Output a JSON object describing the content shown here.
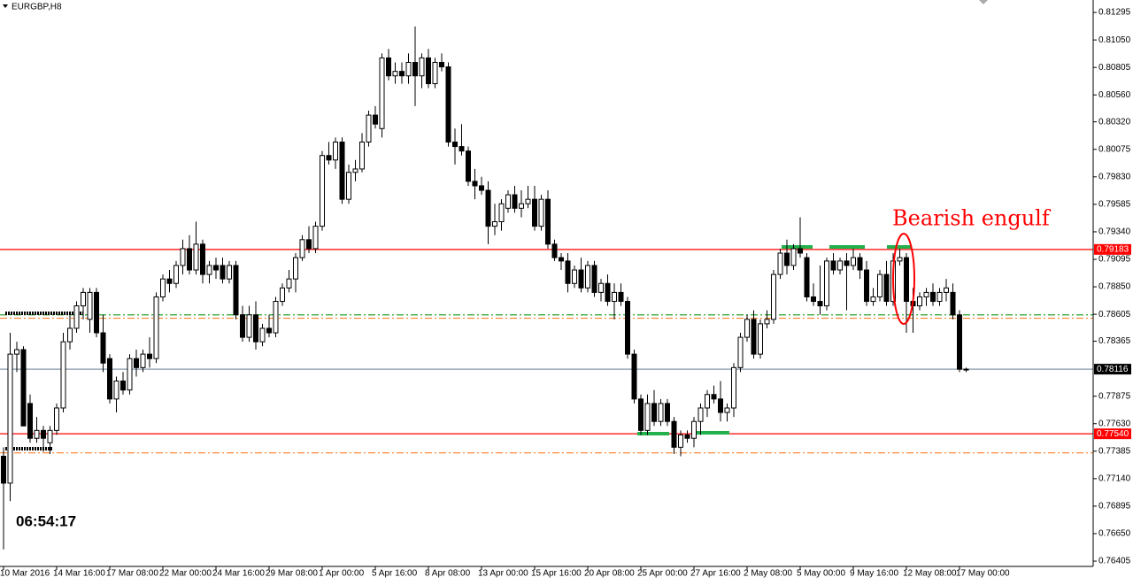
{
  "chart_data": {
    "type": "candlestick",
    "title": "EURGBP,H8",
    "timer": "06:54:17",
    "annotation": "Bearish engulf",
    "ylim": [
      0.76358,
      0.81406
    ],
    "yticks": [
      0.81295,
      {
        "value": 0.8105,
        "label": "0.81050"
      },
      0.80805,
      {
        "value": 0.8056,
        "label": "0.80560"
      },
      {
        "value": 0.8032,
        "label": "0.80320"
      },
      0.80075,
      {
        "value": 0.7983,
        "label": "0.79830"
      },
      0.79585,
      {
        "value": 0.7934,
        "label": "0.79340"
      },
      0.79095,
      {
        "value": 0.7885,
        "label": "0.78850"
      },
      0.78605,
      0.78365,
      0.77875,
      {
        "value": 0.7763,
        "label": "0.77630"
      },
      0.77385,
      {
        "value": 0.7714,
        "label": "0.77140"
      },
      0.76895,
      {
        "value": 0.7665,
        "label": "0.76650"
      },
      0.76405
    ],
    "levels": [
      {
        "value": 0.79183,
        "label": "0.79183",
        "color": "#ff0000",
        "style": "solid"
      },
      {
        "value": 0.7754,
        "label": "0.77540",
        "color": "#ff0000",
        "style": "solid"
      },
      {
        "value": 0.78116,
        "label": "0.78116",
        "color": "#8a9aa8",
        "style": "solid"
      },
      {
        "value": 0.786,
        "color": "#2ca02c",
        "style": "dashdot"
      },
      {
        "value": 0.7857,
        "color": "#ff7f27",
        "style": "dashdot"
      },
      {
        "value": 0.7737,
        "color": "#ff7f27",
        "style": "dashdot"
      }
    ],
    "up_color": "#ffffff",
    "down_color": "#000000",
    "categories": [
      "10 Mar 2016",
      null,
      null,
      null,
      null,
      null,
      null,
      null,
      "14 Mar 16:00",
      null,
      null,
      null,
      null,
      null,
      null,
      null,
      "17 Mar 08:00",
      null,
      null,
      null,
      null,
      null,
      null,
      null,
      "22 Mar 00:00",
      null,
      null,
      null,
      null,
      null,
      null,
      null,
      "24 Mar 16:00",
      null,
      null,
      null,
      null,
      null,
      null,
      null,
      "29 Mar 08:00",
      null,
      null,
      null,
      null,
      null,
      null,
      null,
      "1 Apr 00:00",
      null,
      null,
      null,
      null,
      null,
      null,
      null,
      "5 Apr 16:00",
      null,
      null,
      null,
      null,
      null,
      null,
      null,
      "8 Apr 08:00",
      null,
      null,
      null,
      null,
      null,
      null,
      null,
      "13 Apr 00:00",
      null,
      null,
      null,
      null,
      null,
      null,
      null,
      "15 Apr 16:00",
      null,
      null,
      null,
      null,
      null,
      null,
      null,
      "20 Apr 08:00",
      null,
      null,
      null,
      null,
      null,
      null,
      null,
      "25 Apr 00:00",
      null,
      null,
      null,
      null,
      null,
      null,
      null,
      "27 Apr 16:00",
      null,
      null,
      null,
      null,
      null,
      null,
      null,
      "2 May 08:00",
      null,
      null,
      null,
      null,
      null,
      null,
      null,
      "5 May 00:00",
      null,
      null,
      null,
      null,
      null,
      null,
      null,
      "9 May 16:00",
      null,
      null,
      null,
      null,
      null,
      null,
      null,
      "12 May 08:00",
      null,
      null,
      null,
      null,
      null,
      null,
      null,
      "17 May 00:00",
      null
    ],
    "values": [
      [
        0.7734,
        0.7742,
        0.7651,
        0.771
      ],
      [
        0.771,
        0.7844,
        0.7694,
        0.7825
      ],
      [
        0.7825,
        0.7836,
        0.7809,
        0.7829
      ],
      [
        0.7829,
        0.7832,
        0.7761,
        0.7761
      ],
      [
        0.7781,
        0.7789,
        0.7746,
        0.775
      ],
      [
        0.775,
        0.7769,
        0.7746,
        0.7757
      ],
      [
        0.7757,
        0.7761,
        0.7738,
        0.775
      ],
      [
        0.7746,
        0.7761,
        0.7736,
        0.7757
      ],
      [
        0.7757,
        0.7781,
        0.7753,
        0.7777
      ],
      [
        0.7777,
        0.7844,
        0.7773,
        0.7836
      ],
      [
        0.7836,
        0.786,
        0.7829,
        0.7848
      ],
      [
        0.7848,
        0.7872,
        0.7844,
        0.7868
      ],
      [
        0.7868,
        0.7884,
        0.7856,
        0.788
      ],
      [
        0.7856,
        0.7884,
        0.7844,
        0.788
      ],
      [
        0.788,
        0.7884,
        0.784,
        0.7844
      ],
      [
        0.7844,
        0.786,
        0.7809,
        0.7817
      ],
      [
        0.7821,
        0.7825,
        0.7781,
        0.7785
      ],
      [
        0.7785,
        0.7805,
        0.7773,
        0.7801
      ],
      [
        0.7801,
        0.7809,
        0.7789,
        0.7793
      ],
      [
        0.7793,
        0.7825,
        0.7789,
        0.7821
      ],
      [
        0.7821,
        0.7829,
        0.7805,
        0.7813
      ],
      [
        0.7813,
        0.7829,
        0.7809,
        0.7825
      ],
      [
        0.7825,
        0.784,
        0.7813,
        0.7821
      ],
      [
        0.7821,
        0.788,
        0.7817,
        0.7876
      ],
      [
        0.7876,
        0.7896,
        0.7872,
        0.7892
      ],
      [
        0.7892,
        0.79,
        0.788,
        0.7888
      ],
      [
        0.7888,
        0.7908,
        0.7884,
        0.7904
      ],
      [
        0.7904,
        0.7927,
        0.7896,
        0.7919
      ],
      [
        0.7919,
        0.7931,
        0.7896,
        0.79
      ],
      [
        0.79,
        0.7943,
        0.7896,
        0.7923
      ],
      [
        0.7923,
        0.7927,
        0.7888,
        0.7896
      ],
      [
        0.7896,
        0.7908,
        0.7888,
        0.7904
      ],
      [
        0.7904,
        0.7911,
        0.7892,
        0.79
      ],
      [
        0.7904,
        0.7911,
        0.7888,
        0.7892
      ],
      [
        0.7892,
        0.7908,
        0.7888,
        0.7904
      ],
      [
        0.7904,
        0.7908,
        0.7856,
        0.786
      ],
      [
        0.786,
        0.7868,
        0.7836,
        0.784
      ],
      [
        0.784,
        0.7868,
        0.7836,
        0.786
      ],
      [
        0.786,
        0.7872,
        0.7829,
        0.7836
      ],
      [
        0.7836,
        0.7852,
        0.7832,
        0.7848
      ],
      [
        0.7848,
        0.786,
        0.784,
        0.7844
      ],
      [
        0.7844,
        0.7876,
        0.784,
        0.7872
      ],
      [
        0.7872,
        0.7888,
        0.7868,
        0.7884
      ],
      [
        0.7884,
        0.79,
        0.788,
        0.7892
      ],
      [
        0.7892,
        0.7915,
        0.788,
        0.7911
      ],
      [
        0.7911,
        0.7931,
        0.7908,
        0.7927
      ],
      [
        0.7927,
        0.7939,
        0.7915,
        0.7919
      ],
      [
        0.7919,
        0.7943,
        0.7915,
        0.7939
      ],
      [
        0.7939,
        0.8006,
        0.7935,
        0.8002
      ],
      [
        0.8002,
        0.8014,
        0.7994,
        0.7998
      ],
      [
        0.7998,
        0.8018,
        0.799,
        0.8014
      ],
      [
        0.8014,
        0.8018,
        0.7959,
        0.7963
      ],
      [
        0.7963,
        0.7994,
        0.7959,
        0.7987
      ],
      [
        0.7987,
        0.7998,
        0.7979,
        0.799
      ],
      [
        0.799,
        0.8022,
        0.7987,
        0.8014
      ],
      [
        0.8014,
        0.8042,
        0.801,
        0.8038
      ],
      [
        0.8038,
        0.8046,
        0.8026,
        0.803
      ],
      [
        0.8026,
        0.8093,
        0.8018,
        0.8089
      ],
      [
        0.8089,
        0.8097,
        0.8069,
        0.8073
      ],
      [
        0.8073,
        0.8085,
        0.8066,
        0.8077
      ],
      [
        0.8077,
        0.8085,
        0.8066,
        0.8073
      ],
      [
        0.8073,
        0.8093,
        0.8066,
        0.8085
      ],
      [
        0.8085,
        0.8117,
        0.8046,
        0.8073
      ],
      [
        0.8073,
        0.8093,
        0.8062,
        0.8089
      ],
      [
        0.8089,
        0.8097,
        0.8062,
        0.8066
      ],
      [
        0.8066,
        0.8089,
        0.8062,
        0.8085
      ],
      [
        0.8085,
        0.8093,
        0.8077,
        0.8081
      ],
      [
        0.8081,
        0.8085,
        0.801,
        0.8014
      ],
      [
        0.8014,
        0.8026,
        0.7994,
        0.801
      ],
      [
        0.801,
        0.803,
        0.8002,
        0.8006
      ],
      [
        0.8006,
        0.801,
        0.7975,
        0.7979
      ],
      [
        0.7979,
        0.799,
        0.7963,
        0.7975
      ],
      [
        0.7975,
        0.7983,
        0.7967,
        0.7971
      ],
      [
        0.7971,
        0.7979,
        0.7923,
        0.7939
      ],
      [
        0.7939,
        0.7959,
        0.7931,
        0.7943
      ],
      [
        0.7943,
        0.7963,
        0.7935,
        0.7959
      ],
      [
        0.7955,
        0.7971,
        0.7951,
        0.7967
      ],
      [
        0.7967,
        0.7975,
        0.7951,
        0.7955
      ],
      [
        0.7955,
        0.7971,
        0.7947,
        0.7959
      ],
      [
        0.7959,
        0.7975,
        0.7955,
        0.7963
      ],
      [
        0.7963,
        0.7975,
        0.7935,
        0.7939
      ],
      [
        0.7939,
        0.7967,
        0.7935,
        0.7963
      ],
      [
        0.7963,
        0.7971,
        0.7919,
        0.7923
      ],
      [
        0.7923,
        0.7927,
        0.7908,
        0.7911
      ],
      [
        0.7911,
        0.7915,
        0.79,
        0.7908
      ],
      [
        0.7908,
        0.7915,
        0.788,
        0.7888
      ],
      [
        0.7888,
        0.7904,
        0.7884,
        0.79
      ],
      [
        0.79,
        0.7911,
        0.788,
        0.7884
      ],
      [
        0.7884,
        0.7908,
        0.788,
        0.7904
      ],
      [
        0.7904,
        0.7908,
        0.7876,
        0.788
      ],
      [
        0.788,
        0.7892,
        0.7872,
        0.7888
      ],
      [
        0.7888,
        0.7896,
        0.7868,
        0.7872
      ],
      [
        0.7872,
        0.7888,
        0.7856,
        0.788
      ],
      [
        0.788,
        0.7888,
        0.7868,
        0.7872
      ],
      [
        0.7872,
        0.7876,
        0.7821,
        0.7825
      ],
      [
        0.7825,
        0.7829,
        0.7781,
        0.7785
      ],
      [
        0.7785,
        0.7789,
        0.7753,
        0.7757
      ],
      [
        0.7757,
        0.7789,
        0.7753,
        0.7781
      ],
      [
        0.7781,
        0.7793,
        0.7761,
        0.7765
      ],
      [
        0.7765,
        0.7785,
        0.7761,
        0.7781
      ],
      [
        0.7781,
        0.7785,
        0.7761,
        0.7765
      ],
      [
        0.7765,
        0.7769,
        0.7736,
        0.7742
      ],
      [
        0.7742,
        0.7757,
        0.7734,
        0.7753
      ],
      [
        0.7753,
        0.7757,
        0.7746,
        0.775
      ],
      [
        0.775,
        0.7769,
        0.7742,
        0.7765
      ],
      [
        0.7765,
        0.7781,
        0.7753,
        0.7777
      ],
      [
        0.7777,
        0.7793,
        0.7769,
        0.7789
      ],
      [
        0.7789,
        0.7797,
        0.7781,
        0.7785
      ],
      [
        0.7785,
        0.7801,
        0.7765,
        0.7773
      ],
      [
        0.7773,
        0.7781,
        0.7765,
        0.7777
      ],
      [
        0.7777,
        0.7817,
        0.7769,
        0.7813
      ],
      [
        0.7813,
        0.7844,
        0.7809,
        0.784
      ],
      [
        0.784,
        0.786,
        0.7836,
        0.7856
      ],
      [
        0.7856,
        0.7864,
        0.7821,
        0.7825
      ],
      [
        0.7825,
        0.7856,
        0.7821,
        0.7852
      ],
      [
        0.7852,
        0.7864,
        0.7848,
        0.7856
      ],
      [
        0.7856,
        0.79,
        0.7852,
        0.7896
      ],
      [
        0.7896,
        0.7919,
        0.7892,
        0.7915
      ],
      [
        0.7915,
        0.7927,
        0.7896,
        0.7904
      ],
      [
        0.7904,
        0.7923,
        0.79,
        0.7919
      ],
      [
        0.7919,
        0.7947,
        0.7911,
        0.7915
      ],
      [
        0.7911,
        0.7915,
        0.7872,
        0.7876
      ],
      [
        0.7876,
        0.7888,
        0.7868,
        0.7872
      ],
      [
        0.7872,
        0.7904,
        0.786,
        0.7868
      ],
      [
        0.7868,
        0.7911,
        0.7864,
        0.7908
      ],
      [
        0.7908,
        0.7915,
        0.7896,
        0.79
      ],
      [
        0.79,
        0.7911,
        0.7896,
        0.7908
      ],
      [
        0.7908,
        0.7915,
        0.7864,
        0.7904
      ],
      [
        0.7904,
        0.7919,
        0.79,
        0.7911
      ],
      [
        0.7911,
        0.7915,
        0.7892,
        0.79
      ],
      [
        0.79,
        0.7908,
        0.7868,
        0.7872
      ],
      [
        0.7872,
        0.7884,
        0.7868,
        0.7876
      ],
      [
        0.7876,
        0.79,
        0.7872,
        0.7896
      ],
      [
        0.7896,
        0.7908,
        0.7868,
        0.7872
      ],
      [
        0.7872,
        0.7915,
        0.7868,
        0.7908
      ],
      [
        0.7908,
        0.7919,
        0.7904,
        0.7911
      ],
      [
        0.7911,
        0.7915,
        0.7844,
        0.7872
      ],
      [
        0.7872,
        0.7884,
        0.7844,
        0.7868
      ],
      [
        0.7868,
        0.788,
        0.7864,
        0.7876
      ],
      [
        0.7876,
        0.7884,
        0.7868,
        0.788
      ],
      [
        0.788,
        0.7888,
        0.7868,
        0.7872
      ],
      [
        0.7872,
        0.7884,
        0.7868,
        0.788
      ],
      [
        0.788,
        0.7892,
        0.7872,
        0.7884
      ],
      [
        0.788,
        0.7888,
        0.7856,
        0.786
      ],
      [
        0.786,
        0.7864,
        0.7809,
        0.78116
      ],
      [
        0.78116,
        0.7813,
        0.7809,
        0.78116
      ]
    ]
  }
}
